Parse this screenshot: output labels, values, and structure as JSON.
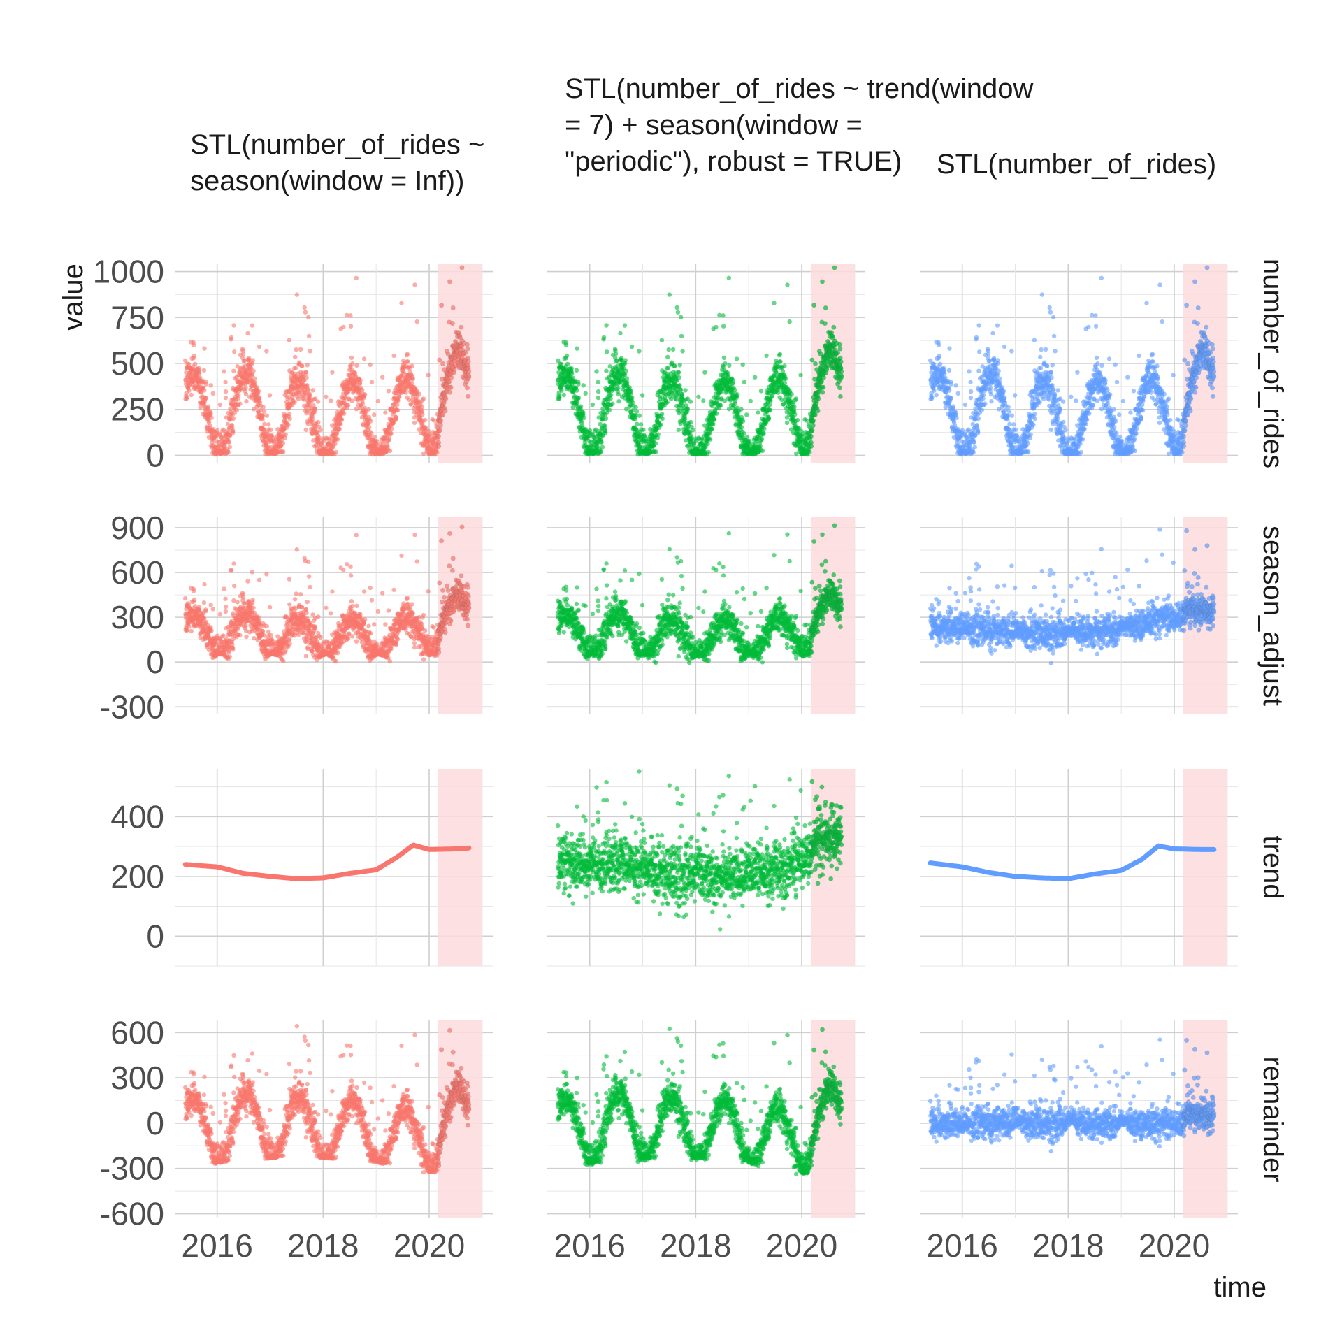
{
  "chart_data": {
    "type": "scatter",
    "x_label": "time",
    "y_label": "value",
    "columns": [
      {
        "title": "STL(number_of_rides ~ season(window = Inf))",
        "color": "#F8766D"
      },
      {
        "title": "STL(number_of_rides ~ trend(window = 7) + season(window = \"periodic\"), robust = TRUE)",
        "color": "#00BA38"
      },
      {
        "title": "STL(number_of_rides)",
        "color": "#619CFF"
      }
    ],
    "rows": [
      {
        "label": "number_of_rides",
        "ylim": [
          -40,
          1040
        ],
        "ticks": [
          0,
          250,
          500,
          750,
          1000
        ]
      },
      {
        "label": "season_adjust",
        "ylim": [
          -350,
          970
        ],
        "ticks": [
          -300,
          0,
          300,
          600,
          900
        ]
      },
      {
        "label": "trend",
        "ylim": [
          -100,
          560
        ],
        "ticks": [
          0,
          200,
          400
        ]
      },
      {
        "label": "remainder",
        "ylim": [
          -630,
          680
        ],
        "ticks": [
          -600,
          -300,
          0,
          300,
          600
        ]
      }
    ],
    "x_ticks": [
      "2016",
      "2018",
      "2020"
    ],
    "x_tick_values": [
      2016,
      2018,
      2020
    ],
    "xlim": [
      2015.2,
      2021.2
    ],
    "highlight_region": {
      "from": 2020.17,
      "to": 2021.0,
      "color": "#FDDCDD"
    },
    "data_range": {
      "start": 2015.4,
      "end": 2020.75
    },
    "grid": true,
    "series": [
      {
        "name": "number_of_rides",
        "annual_mean": [
          240,
          245,
          205,
          200,
          215,
          300,
          295
        ],
        "seasonal_amplitude": 210,
        "peak_phase": 0.55,
        "outliers_max": [
          860,
          840,
          880,
          1000,
          970,
          860
        ]
      },
      {
        "name": "trend_smooth_STL_inf",
        "x": [
          2015.4,
          2016.0,
          2016.5,
          2017.0,
          2017.5,
          2018.0,
          2018.5,
          2019.0,
          2019.4,
          2019.7,
          2020.0,
          2020.5,
          2020.75
        ],
        "values": [
          240,
          232,
          210,
          200,
          192,
          195,
          210,
          222,
          265,
          305,
          290,
          292,
          295
        ]
      },
      {
        "name": "trend_smooth_STL_default",
        "x": [
          2015.4,
          2016.0,
          2016.5,
          2017.0,
          2017.5,
          2018.0,
          2018.5,
          2019.0,
          2019.4,
          2019.7,
          2020.0,
          2020.5,
          2020.75
        ],
        "values": [
          245,
          232,
          213,
          200,
          195,
          192,
          208,
          220,
          258,
          302,
          292,
          290,
          290
        ]
      }
    ]
  }
}
